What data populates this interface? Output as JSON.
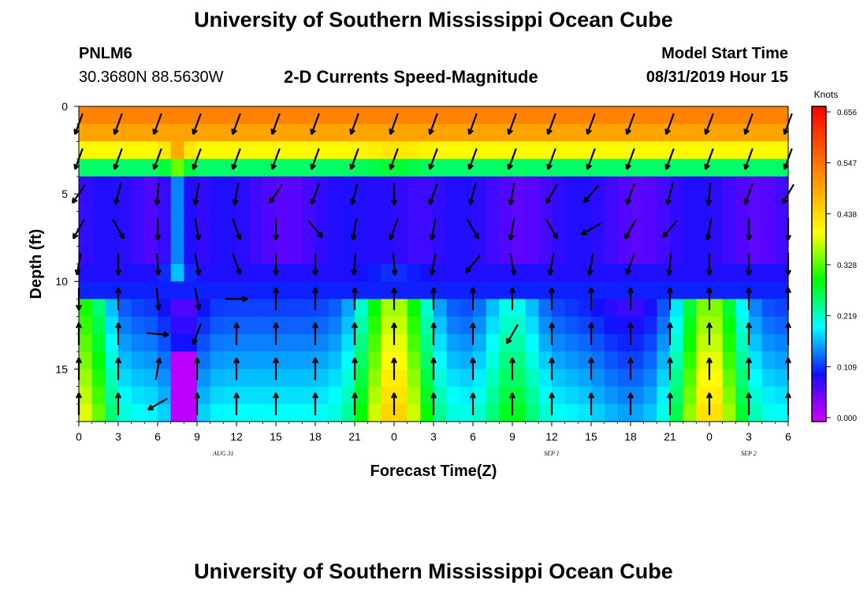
{
  "header": {
    "title": "University of Southern Mississippi Ocean Cube",
    "footer_title": "University of Southern Mississippi Ocean Cube",
    "station": "PNLM6",
    "location": "30.3680N 88.5630W",
    "subtitle": "2-D Currents Speed-Magnitude",
    "model_label": "Model Start Time",
    "model_time": "08/31/2019 Hour 15"
  },
  "chart_data": {
    "type": "heatmap",
    "xlabel": "Forecast Time(Z)",
    "ylabel": "Depth (ft)",
    "colorbar_unit": "Knots",
    "x_ticks": [
      "0",
      "3",
      "6",
      "9",
      "12",
      "15",
      "18",
      "21",
      "0",
      "3",
      "6",
      "9",
      "12",
      "15",
      "18",
      "21",
      "0",
      "3",
      "6"
    ],
    "x_hours": [
      0,
      3,
      6,
      9,
      12,
      15,
      18,
      21,
      24,
      27,
      30,
      33,
      36,
      39,
      42,
      45,
      48,
      51,
      54
    ],
    "date_labels": [
      {
        "text": "AUG 31",
        "hour": 11
      },
      {
        "text": "SEP 1",
        "hour": 36
      },
      {
        "text": "SEP 2",
        "hour": 51
      }
    ],
    "y_ticks": [
      0,
      5,
      10,
      15
    ],
    "ylim": [
      0,
      18
    ],
    "xlim": [
      0,
      54
    ],
    "colorbar_ticks": [
      "0.656",
      "0.547",
      "0.438",
      "0.328",
      "0.219",
      "0.109",
      "0.000"
    ],
    "colorbar_range": [
      0,
      0.656
    ],
    "depth_rows": [
      0.5,
      1.5,
      2.5,
      3.5,
      4.5,
      5.5,
      6.5,
      7.5,
      8.5,
      9.5,
      10.5,
      11.5,
      12.5,
      13.5,
      14.5,
      15.5,
      16.5,
      17.5
    ],
    "arrow_hours": [
      0,
      3,
      6,
      9,
      12,
      15,
      18,
      21,
      24,
      27,
      30,
      33,
      36,
      39,
      42,
      45,
      48,
      51,
      54
    ],
    "arrow_depths": [
      1,
      3,
      5,
      7,
      9,
      11,
      13,
      15,
      17
    ],
    "arrow_rows": [
      [
        200,
        200,
        200,
        200,
        200,
        200,
        200,
        200,
        200,
        200,
        200,
        200,
        200,
        200,
        200,
        200,
        200,
        200,
        200
      ],
      [
        200,
        200,
        200,
        200,
        200,
        200,
        200,
        200,
        200,
        200,
        200,
        200,
        200,
        200,
        200,
        200,
        200,
        200,
        200
      ],
      [
        215,
        195,
        185,
        190,
        190,
        215,
        200,
        195,
        180,
        200,
        195,
        190,
        210,
        220,
        200,
        195,
        185,
        200,
        210
      ],
      [
        210,
        150,
        180,
        170,
        160,
        180,
        140,
        190,
        200,
        190,
        150,
        190,
        150,
        240,
        210,
        220,
        190,
        180,
        180
      ],
      [
        190,
        180,
        175,
        170,
        160,
        180,
        180,
        185,
        175,
        190,
        220,
        170,
        190,
        190,
        200,
        185,
        180,
        180,
        180
      ],
      [
        180,
        0,
        175,
        170,
        90,
        0,
        0,
        0,
        0,
        0,
        0,
        0,
        0,
        0,
        0,
        0,
        0,
        0,
        0
      ],
      [
        0,
        0,
        95,
        200,
        0,
        0,
        0,
        0,
        0,
        0,
        0,
        210,
        0,
        0,
        0,
        0,
        0,
        0,
        0
      ],
      [
        0,
        0,
        10,
        0,
        0,
        0,
        0,
        0,
        0,
        0,
        0,
        0,
        0,
        0,
        0,
        0,
        0,
        0,
        0
      ],
      [
        0,
        0,
        240,
        0,
        0,
        0,
        0,
        0,
        0,
        0,
        0,
        0,
        0,
        0,
        0,
        0,
        0,
        0,
        0
      ]
    ]
  }
}
